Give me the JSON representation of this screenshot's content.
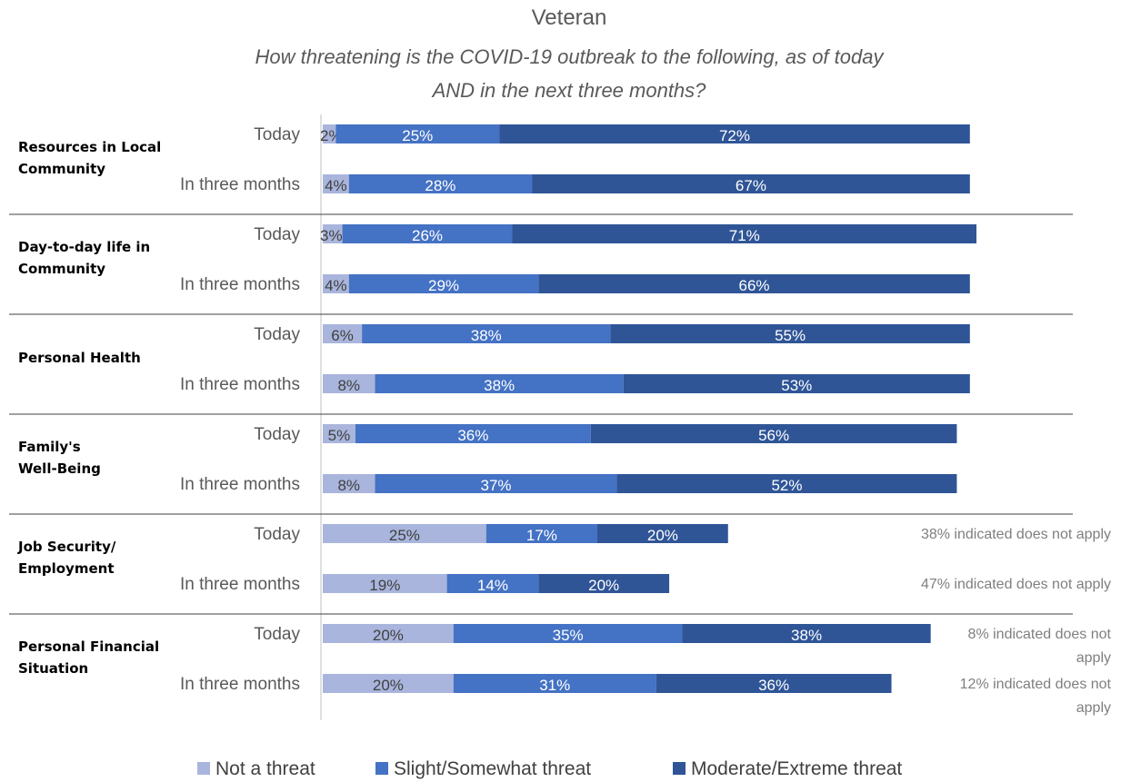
{
  "chart_data": {
    "type": "bar",
    "orientation": "horizontal",
    "stacked": true,
    "title": "Veteran",
    "subtitle": "How threatening is the COVID-19 outbreak to the following, as of today AND in the next three months?",
    "subtitle_lines": [
      "How threatening is the COVID-19 outbreak to the following, as of today",
      "AND in the next three months?"
    ],
    "legend_position": "bottom",
    "series": [
      {
        "name": "Not a threat",
        "color": "#a9b5dc",
        "label_color": "#404040"
      },
      {
        "name": "Slight/Somewhat threat",
        "color": "#4472c4",
        "label_color": "#ffffff"
      },
      {
        "name": "Moderate/Extreme threat",
        "color": "#2f5597",
        "label_color": "#ffffff"
      }
    ],
    "groups": [
      {
        "label_lines": [
          "Resources in Local",
          "Community"
        ],
        "rows": [
          {
            "label": "Today",
            "values": [
              2,
              25,
              72
            ],
            "labels": [
              "2%",
              "25%",
              "72%"
            ],
            "note_lines": []
          },
          {
            "label": "In three months",
            "values": [
              4,
              28,
              67
            ],
            "labels": [
              "4%",
              "28%",
              "67%"
            ],
            "note_lines": []
          }
        ]
      },
      {
        "label_lines": [
          "Day-to-day life in",
          "Community"
        ],
        "rows": [
          {
            "label": "Today",
            "values": [
              3,
              26,
              71
            ],
            "labels": [
              "3%",
              "26%",
              "71%"
            ],
            "note_lines": []
          },
          {
            "label": "In three months",
            "values": [
              4,
              29,
              66
            ],
            "labels": [
              "4%",
              "29%",
              "66%"
            ],
            "note_lines": []
          }
        ]
      },
      {
        "label_lines": [
          "Personal Health"
        ],
        "rows": [
          {
            "label": "Today",
            "values": [
              6,
              38,
              55
            ],
            "labels": [
              "6%",
              "38%",
              "55%"
            ],
            "note_lines": []
          },
          {
            "label": "In three months",
            "values": [
              8,
              38,
              53
            ],
            "labels": [
              "8%",
              "38%",
              "53%"
            ],
            "note_lines": []
          }
        ]
      },
      {
        "label_lines": [
          "Family's",
          "Well-Being"
        ],
        "rows": [
          {
            "label": "Today",
            "values": [
              5,
              36,
              56
            ],
            "labels": [
              "5%",
              "36%",
              "56%"
            ],
            "note_lines": []
          },
          {
            "label": "In three months",
            "values": [
              8,
              37,
              52
            ],
            "labels": [
              "8%",
              "37%",
              "52%"
            ],
            "note_lines": []
          }
        ]
      },
      {
        "label_lines": [
          "Job Security/",
          "Employment"
        ],
        "rows": [
          {
            "label": "Today",
            "values": [
              25,
              17,
              20
            ],
            "labels": [
              "25%",
              "17%",
              "20%"
            ],
            "note_lines": [
              "38% indicated does not apply"
            ]
          },
          {
            "label": "In three months",
            "values": [
              19,
              14,
              20
            ],
            "labels": [
              "19%",
              "14%",
              "20%"
            ],
            "note_lines": [
              "47% indicated does not apply"
            ]
          }
        ]
      },
      {
        "label_lines": [
          "Personal Financial",
          "Situation"
        ],
        "rows": [
          {
            "label": "Today",
            "values": [
              20,
              35,
              38
            ],
            "labels": [
              "20%",
              "35%",
              "38%"
            ],
            "note_lines": [
              "8% indicated does not",
              "apply"
            ]
          },
          {
            "label": "In three months",
            "values": [
              20,
              31,
              36
            ],
            "labels": [
              "20%",
              "31%",
              "36%"
            ],
            "note_lines": [
              "12% indicated does not",
              "apply"
            ]
          }
        ]
      }
    ]
  }
}
